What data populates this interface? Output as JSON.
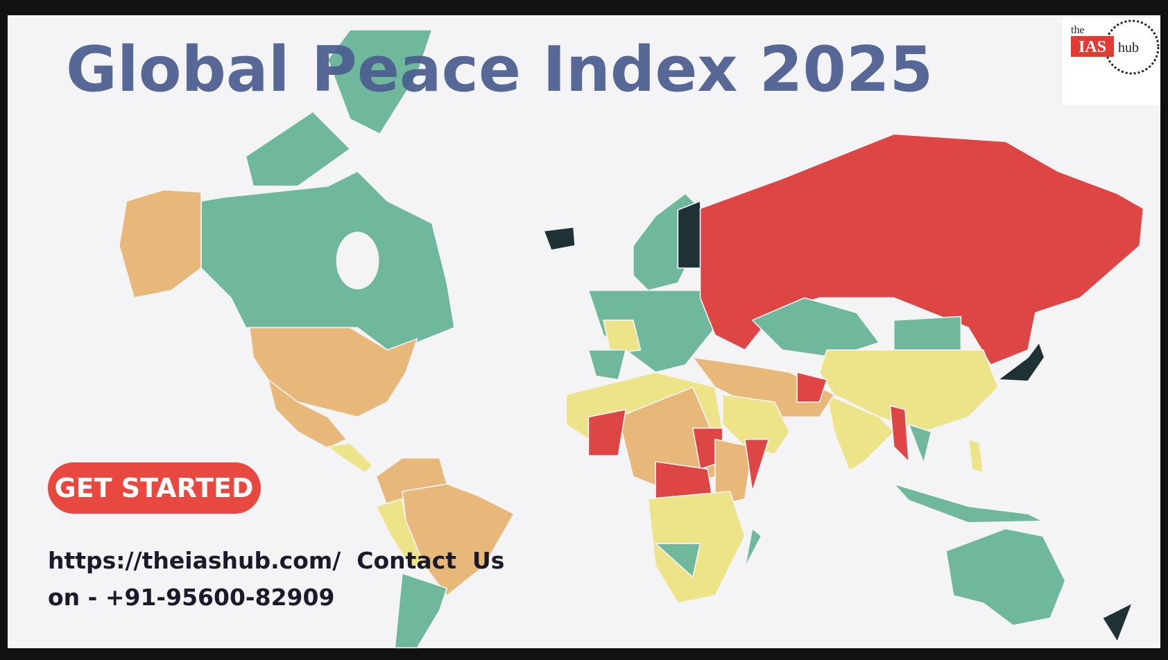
{
  "title": "Global Peace Index 2025",
  "logo": {
    "the": "the",
    "ias": "IAS",
    "hub": "hub"
  },
  "button": "GET STARTED",
  "contact": {
    "line1": "https://theiashub.com/  Contact  Us",
    "line2": "on - +91-95600-82909"
  }
}
